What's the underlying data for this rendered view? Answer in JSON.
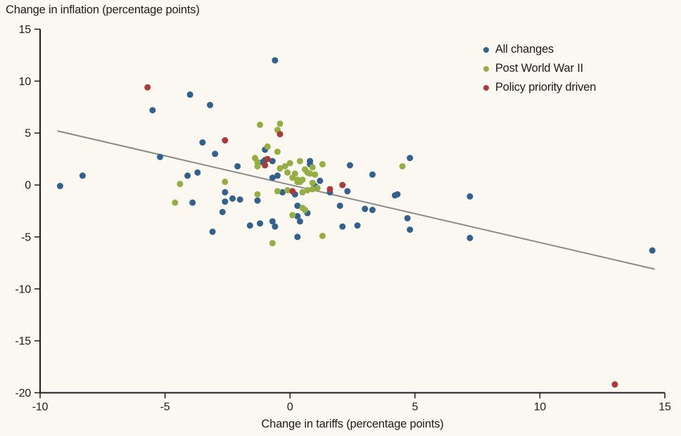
{
  "page": {
    "background_color": "#fbf8f2",
    "axis_color": "#1c1c1c",
    "text_color": "#1c1c1c"
  },
  "chart_data": {
    "type": "scatter",
    "title": "",
    "ylabel": "Change in inflation (percentage points)",
    "xlabel": "Change in tariffs (percentage points)",
    "xlim": [
      -10,
      15
    ],
    "ylim": [
      -20,
      15
    ],
    "xticks": [
      -10,
      -5,
      0,
      5,
      10,
      15
    ],
    "yticks": [
      15,
      10,
      5,
      0,
      -5,
      -10,
      -15,
      -20
    ],
    "grid": false,
    "legend_position": "top-right-inside",
    "trendline": {
      "x1": -9.3,
      "y1": 5.2,
      "x2": 14.6,
      "y2": -8.1,
      "color": "#8a8a8a"
    },
    "series": [
      {
        "name": "All changes",
        "color": "#31618e",
        "points": [
          [
            -9.2,
            -0.1
          ],
          [
            -8.3,
            0.9
          ],
          [
            -5.5,
            7.2
          ],
          [
            -5.2,
            2.7
          ],
          [
            -4.1,
            0.9
          ],
          [
            -4.0,
            8.7
          ],
          [
            -3.9,
            -1.7
          ],
          [
            -3.7,
            1.2
          ],
          [
            -3.5,
            4.1
          ],
          [
            -3.2,
            7.7
          ],
          [
            -3.1,
            -4.5
          ],
          [
            -3.0,
            3.0
          ],
          [
            -2.7,
            -2.6
          ],
          [
            -2.6,
            -0.7
          ],
          [
            -2.6,
            -1.6
          ],
          [
            -2.3,
            -1.3
          ],
          [
            -2.1,
            1.8
          ],
          [
            -2.0,
            -1.4
          ],
          [
            -1.6,
            -3.9
          ],
          [
            -1.3,
            -1.5
          ],
          [
            -1.2,
            -3.7
          ],
          [
            -1.1,
            2.2
          ],
          [
            -1.0,
            2.4
          ],
          [
            -1.0,
            3.4
          ],
          [
            -0.7,
            2.3
          ],
          [
            -0.7,
            0.7
          ],
          [
            -0.7,
            -3.5
          ],
          [
            -0.6,
            12.0
          ],
          [
            -0.6,
            -4.0
          ],
          [
            -0.5,
            0.9
          ],
          [
            -0.3,
            -0.7
          ],
          [
            0.2,
            -0.9
          ],
          [
            0.3,
            -2.0
          ],
          [
            0.3,
            -3.0
          ],
          [
            0.3,
            -5.0
          ],
          [
            0.4,
            -3.5
          ],
          [
            0.7,
            -2.7
          ],
          [
            0.8,
            2.3
          ],
          [
            0.8,
            2.0
          ],
          [
            1.0,
            -0.1
          ],
          [
            1.2,
            0.4
          ],
          [
            1.6,
            -0.7
          ],
          [
            2.0,
            -2.0
          ],
          [
            2.1,
            -4.0
          ],
          [
            2.3,
            -0.6
          ],
          [
            2.4,
            1.9
          ],
          [
            2.7,
            -3.9
          ],
          [
            3.0,
            -2.3
          ],
          [
            3.3,
            1.0
          ],
          [
            3.3,
            -2.4
          ],
          [
            4.2,
            -1.0
          ],
          [
            4.3,
            -0.9
          ],
          [
            4.7,
            -3.2
          ],
          [
            4.8,
            -4.3
          ],
          [
            4.8,
            2.6
          ],
          [
            7.2,
            -1.1
          ],
          [
            7.2,
            -5.1
          ],
          [
            14.5,
            -6.3
          ]
        ]
      },
      {
        "name": "Post World War II",
        "color": "#94ae44",
        "points": [
          [
            -4.6,
            -1.7
          ],
          [
            -4.4,
            0.1
          ],
          [
            -2.6,
            0.3
          ],
          [
            -1.4,
            2.6
          ],
          [
            -1.3,
            2.2
          ],
          [
            -1.3,
            1.8
          ],
          [
            -1.3,
            -0.9
          ],
          [
            -1.2,
            5.8
          ],
          [
            -0.9,
            3.7
          ],
          [
            -0.7,
            -5.6
          ],
          [
            -0.5,
            5.3
          ],
          [
            -0.5,
            3.2
          ],
          [
            -0.5,
            -0.6
          ],
          [
            -0.4,
            5.9
          ],
          [
            -0.4,
            1.6
          ],
          [
            -0.2,
            1.8
          ],
          [
            -0.1,
            1.2
          ],
          [
            -0.1,
            -0.5
          ],
          [
            0.0,
            2.1
          ],
          [
            0.1,
            0.7
          ],
          [
            0.1,
            -2.9
          ],
          [
            0.2,
            1.1
          ],
          [
            0.3,
            0.5
          ],
          [
            0.3,
            0.3
          ],
          [
            0.4,
            2.3
          ],
          [
            0.4,
            0.3
          ],
          [
            0.5,
            0.5
          ],
          [
            0.5,
            -0.7
          ],
          [
            0.5,
            -2.2
          ],
          [
            0.6,
            1.5
          ],
          [
            0.6,
            -2.4
          ],
          [
            0.7,
            1.2
          ],
          [
            0.7,
            -0.5
          ],
          [
            0.8,
            1.1
          ],
          [
            0.9,
            1.7
          ],
          [
            0.9,
            0.2
          ],
          [
            0.9,
            -0.4
          ],
          [
            1.0,
            1.0
          ],
          [
            1.1,
            -0.3
          ],
          [
            1.3,
            2.0
          ],
          [
            1.3,
            -4.9
          ],
          [
            4.5,
            1.8
          ]
        ]
      },
      {
        "name": "Policy priority driven",
        "color": "#ab3a38",
        "points": [
          [
            -5.7,
            9.4
          ],
          [
            -2.6,
            4.3
          ],
          [
            -1.0,
            1.9
          ],
          [
            -0.9,
            2.5
          ],
          [
            -0.4,
            4.9
          ],
          [
            0.1,
            -0.6
          ],
          [
            1.6,
            -0.4
          ],
          [
            2.1,
            0.0
          ],
          [
            13.0,
            -19.2
          ]
        ]
      }
    ],
    "point_radius": 4.5,
    "legend_dot_radius": 4
  }
}
